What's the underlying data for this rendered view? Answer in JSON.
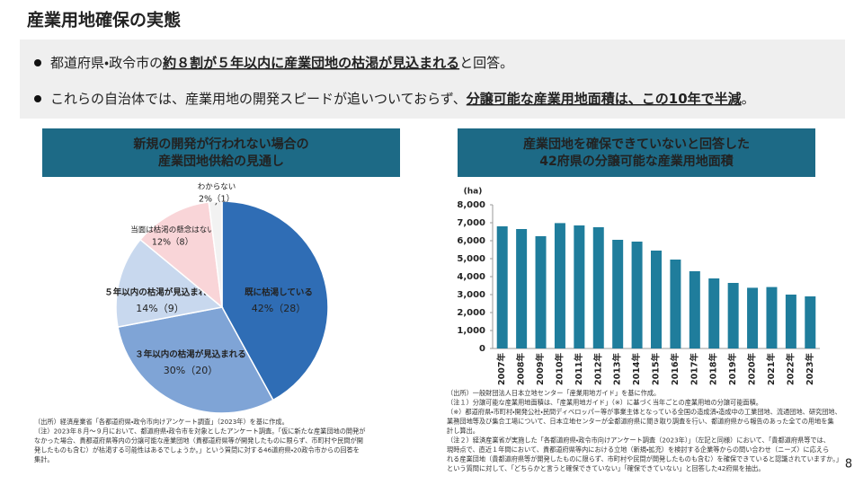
{
  "header": {
    "title": "産業用地確保の実態"
  },
  "bullets": [
    {
      "segments": [
        {
          "text": "都道府県・政令市の",
          "emphasis": false
        },
        {
          "text": "約８割が５年以内に産業団地の枯渇が見込まれる",
          "emphasis": true
        },
        {
          "text": "と回答。",
          "emphasis": false
        }
      ]
    },
    {
      "segments": [
        {
          "text": "これらの自治体では、産業用地の開発スピードが追いついておらず、",
          "emphasis": false
        },
        {
          "text": "分譲可能な産業用地面積は、この10年で半減",
          "emphasis": true
        },
        {
          "text": "。",
          "emphasis": false
        }
      ]
    }
  ],
  "chart_data": [
    {
      "type": "pie",
      "title": [
        "新規の開発が行われない場合の",
        "産業団地供給の見通し"
      ],
      "categories": [
        "既に枯渇している",
        "３年以内の枯渇が見込まれる",
        "５年以内の枯渇が見込まれる",
        "当面は枯渇の懸念はない",
        "わからない"
      ],
      "values": [
        42,
        30,
        14,
        12,
        2
      ],
      "value_labels": [
        "42%（28）",
        "30%（20）",
        "14%（9）",
        "12%（8）",
        "2%（1）"
      ],
      "colors": [
        "#2f6db5",
        "#7fa4d6",
        "#c8d8ee",
        "#f9d5d8",
        "#f2f2f2"
      ],
      "notes": [
        "（出所）経済産業省「各都道府県・政令市向けアンケート調査」（2023年）を基に作成。",
        "（注）2023年８月～９月において、都道府県・政令市を対象としたアンケート調査。「仮に新たな産業団地の開発が",
        "なかった場合、貴都道府県等内の分譲可能な産業団地（貴都道府県等が開発したものに限らず、市町村や民間が開",
        "発したものも含む）が枯渇する可能性はあるでしょうか。」という質問に対する46道府県・20政令市からの回答を",
        "集計。"
      ]
    },
    {
      "type": "bar",
      "title": [
        "産業団地を確保できていないと回答した",
        "42府県の分譲可能な産業用地面積"
      ],
      "y_label": "(ha)",
      "categories": [
        "2007年",
        "2008年",
        "2009年",
        "2010年",
        "2011年",
        "2012年",
        "2013年",
        "2014年",
        "2015年",
        "2016年",
        "2017年",
        "2018年",
        "2019年",
        "2020年",
        "2021年",
        "2022年",
        "2023年"
      ],
      "values": [
        6800,
        6650,
        6250,
        6980,
        6850,
        6750,
        6050,
        5950,
        5450,
        4950,
        4300,
        3900,
        3650,
        3380,
        3420,
        3000,
        2900
      ],
      "color": "#1f7d9c",
      "ylim": [
        0,
        8000
      ],
      "yticks": [
        0,
        {
          "value": 1000,
          "label": "1,000"
        },
        {
          "value": 2000,
          "label": "2,000"
        },
        {
          "value": 3000,
          "label": "3,000"
        },
        {
          "value": 4000,
          "label": "4,000"
        },
        {
          "value": 5000,
          "label": "5,000"
        },
        {
          "value": 6000,
          "label": "6,000"
        },
        {
          "value": 7000,
          "label": "7,000"
        },
        {
          "value": 8000,
          "label": "8,000"
        }
      ],
      "grid": false,
      "notes": [
        "（出所）一般財団法人日本立地センター「産業用地ガイド」を基に作成。",
        "（注１）分譲可能な産業用地面積は、「産業用地ガイド」（※）に基づく当年ごとの産業用地の分譲可能面積。",
        "（※）都道府県・市町村・開発公社・民間ディベロッパー等が事業主体となっている全国の造成済・造成中の工業団地、流通団地、研究団地、",
        "業務団地等及び集合工場について、日本立地センターが全都道府県に聞き取り調査を行い、都道府県から報告のあった全ての用地を集",
        "計し算出。",
        "（注２）経済産業省が実施した「各都道府県・政令市向けアンケート調査（2023年）」（左記と同様）において、「貴都道府県等では、",
        "現時点で、直近１年間において、貴都道府県等内における立地（新規・拡充）を検討する企業等からの問い合わせ（ニーズ）に応えら",
        "れる産業団地（貴都道府県等が開発したものに限らず、市町村や民間が開発したものも含む）を確保できていると認識されていますか。」",
        "という質問に対して、「どちらかと言うと確保できていない」「確保できていない」と回答した42府県を抽出。"
      ]
    }
  ],
  "footer": {
    "page": "8"
  }
}
